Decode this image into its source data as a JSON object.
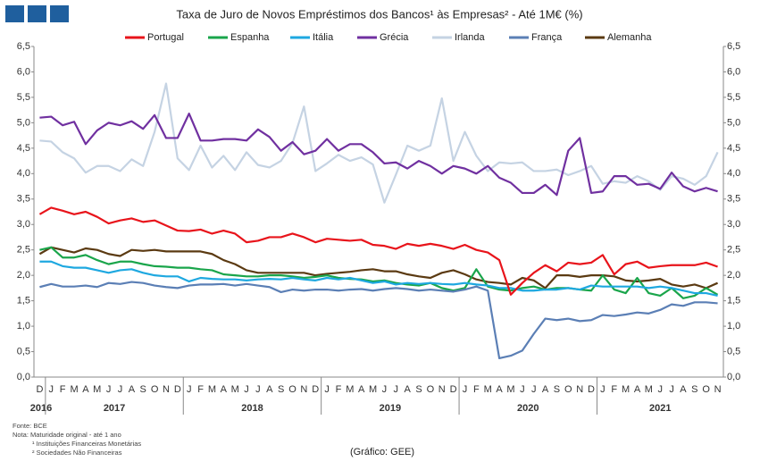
{
  "chart_data": {
    "type": "line",
    "title": "Taxa de Juro de Novos Empréstimos dos Bancos¹ às Empresas² - Até 1M€ (%)",
    "categories": [
      "D",
      "J",
      "F",
      "M",
      "A",
      "M",
      "J",
      "J",
      "A",
      "S",
      "O",
      "N",
      "D",
      "J",
      "F",
      "M",
      "A",
      "M",
      "J",
      "J",
      "A",
      "S",
      "O",
      "N",
      "D",
      "J",
      "F",
      "M",
      "A",
      "M",
      "J",
      "J",
      "A",
      "S",
      "O",
      "N",
      "D",
      "J",
      "F",
      "M",
      "A",
      "M",
      "J",
      "J",
      "A",
      "S",
      "O",
      "N",
      "D",
      "J",
      "F",
      "M",
      "A",
      "M",
      "J",
      "J",
      "A",
      "S",
      "O",
      "N"
    ],
    "years": [
      "2016",
      "2017",
      "2018",
      "2019",
      "2020",
      "2021"
    ],
    "series": [
      {
        "name": "Portugal",
        "color": "#e8141b",
        "values": [
          3.2,
          3.33,
          3.27,
          3.2,
          3.25,
          3.15,
          3.02,
          3.08,
          3.12,
          3.05,
          3.08,
          2.98,
          2.88,
          2.87,
          2.9,
          2.82,
          2.88,
          2.82,
          2.65,
          2.68,
          2.75,
          2.75,
          2.82,
          2.75,
          2.65,
          2.72,
          2.7,
          2.68,
          2.7,
          2.6,
          2.58,
          2.52,
          2.62,
          2.58,
          2.62,
          2.58,
          2.52,
          2.6,
          2.5,
          2.45,
          2.3,
          1.62,
          1.85,
          2.05,
          2.2,
          2.08,
          2.25,
          2.22,
          2.25,
          2.4,
          2.02,
          2.22,
          2.27,
          2.15,
          2.18,
          2.2,
          2.2,
          2.2,
          2.25,
          2.17
        ]
      },
      {
        "name": "Espanha",
        "color": "#1aa54b",
        "values": [
          2.5,
          2.55,
          2.35,
          2.35,
          2.4,
          2.3,
          2.22,
          2.27,
          2.27,
          2.22,
          2.18,
          2.17,
          2.15,
          2.15,
          2.12,
          2.1,
          2.02,
          2.0,
          1.98,
          1.98,
          2.0,
          2.0,
          1.98,
          1.95,
          1.97,
          2.0,
          1.95,
          1.93,
          1.92,
          1.88,
          1.9,
          1.85,
          1.82,
          1.8,
          1.85,
          1.75,
          1.7,
          1.75,
          2.12,
          1.78,
          1.72,
          1.7,
          1.75,
          1.78,
          1.72,
          1.75,
          1.75,
          1.72,
          1.7,
          2.0,
          1.72,
          1.65,
          1.95,
          1.65,
          1.6,
          1.75,
          1.55,
          1.6,
          1.75,
          1.62
        ]
      },
      {
        "name": "Itália",
        "color": "#1ea8e0",
        "values": [
          2.27,
          2.27,
          2.18,
          2.15,
          2.15,
          2.1,
          2.05,
          2.1,
          2.12,
          2.05,
          2.0,
          1.98,
          1.98,
          1.88,
          1.95,
          1.93,
          1.92,
          1.92,
          1.9,
          1.92,
          1.93,
          1.92,
          1.95,
          1.92,
          1.9,
          1.95,
          1.92,
          1.95,
          1.9,
          1.85,
          1.88,
          1.82,
          1.85,
          1.83,
          1.85,
          1.83,
          1.82,
          1.85,
          1.82,
          1.8,
          1.75,
          1.75,
          1.7,
          1.7,
          1.72,
          1.72,
          1.75,
          1.72,
          1.8,
          1.78,
          1.78,
          1.78,
          1.78,
          1.75,
          1.78,
          1.75,
          1.7,
          1.65,
          1.65,
          1.6
        ]
      },
      {
        "name": "Grécia",
        "color": "#7030a0",
        "values": [
          5.1,
          5.12,
          4.95,
          5.02,
          4.58,
          4.85,
          5.0,
          4.95,
          5.03,
          4.88,
          5.15,
          4.7,
          4.7,
          5.18,
          4.65,
          4.65,
          4.68,
          4.68,
          4.65,
          4.87,
          4.72,
          4.45,
          4.62,
          4.38,
          4.45,
          4.68,
          4.45,
          4.58,
          4.58,
          4.42,
          4.2,
          4.22,
          4.1,
          4.25,
          4.15,
          4.0,
          4.15,
          4.1,
          4.0,
          4.15,
          3.92,
          3.82,
          3.62,
          3.62,
          3.78,
          3.58,
          4.45,
          4.7,
          3.62,
          3.65,
          3.95,
          3.95,
          3.78,
          3.8,
          3.7,
          4.02,
          3.75,
          3.65,
          3.72,
          3.65
        ]
      },
      {
        "name": "Irlanda",
        "color": "#c5d3e3",
        "values": [
          4.65,
          4.63,
          4.42,
          4.3,
          4.02,
          4.15,
          4.15,
          4.05,
          4.28,
          4.15,
          4.82,
          5.77,
          4.3,
          4.07,
          4.55,
          4.12,
          4.35,
          4.07,
          4.42,
          4.17,
          4.12,
          4.25,
          4.6,
          5.32,
          4.05,
          4.2,
          4.37,
          4.25,
          4.32,
          4.18,
          3.43,
          3.98,
          4.55,
          4.45,
          4.55,
          5.48,
          4.25,
          4.82,
          4.35,
          4.05,
          4.22,
          4.2,
          4.22,
          4.05,
          4.05,
          4.08,
          3.97,
          4.05,
          4.15,
          3.8,
          3.85,
          3.82,
          3.95,
          3.85,
          3.68,
          3.95,
          3.9,
          3.78,
          3.95,
          4.42
        ]
      },
      {
        "name": "França",
        "color": "#5b7fb5",
        "values": [
          1.77,
          1.83,
          1.78,
          1.78,
          1.8,
          1.77,
          1.85,
          1.83,
          1.87,
          1.85,
          1.8,
          1.77,
          1.75,
          1.8,
          1.82,
          1.82,
          1.83,
          1.8,
          1.83,
          1.8,
          1.77,
          1.67,
          1.72,
          1.7,
          1.72,
          1.72,
          1.7,
          1.72,
          1.73,
          1.7,
          1.73,
          1.75,
          1.73,
          1.7,
          1.72,
          1.7,
          1.68,
          1.72,
          1.78,
          1.7,
          0.37,
          0.42,
          0.52,
          0.85,
          1.15,
          1.12,
          1.15,
          1.1,
          1.12,
          1.22,
          1.2,
          1.23,
          1.27,
          1.25,
          1.32,
          1.43,
          1.4,
          1.47,
          1.47,
          1.45
        ]
      },
      {
        "name": "Alemanha",
        "color": "#5b3a12",
        "values": [
          2.42,
          2.55,
          2.5,
          2.45,
          2.53,
          2.5,
          2.42,
          2.38,
          2.5,
          2.48,
          2.5,
          2.47,
          2.47,
          2.47,
          2.47,
          2.42,
          2.3,
          2.22,
          2.1,
          2.05,
          2.05,
          2.05,
          2.05,
          2.05,
          2.0,
          2.03,
          2.05,
          2.07,
          2.1,
          2.12,
          2.08,
          2.08,
          2.02,
          1.98,
          1.95,
          2.05,
          2.1,
          2.02,
          1.92,
          1.87,
          1.85,
          1.82,
          1.95,
          1.9,
          1.75,
          2.0,
          2.0,
          1.97,
          2.0,
          2.0,
          1.98,
          1.9,
          1.88,
          1.9,
          1.93,
          1.82,
          1.78,
          1.82,
          1.75,
          1.85
        ]
      }
    ],
    "ylim": [
      0,
      6.5
    ],
    "yticks": [
      {
        "value": 0,
        "label": "0,0"
      },
      {
        "value": 0.5,
        "label": "0,5"
      },
      {
        "value": 1,
        "label": "1,0"
      },
      {
        "value": 1.5,
        "label": "1,5"
      },
      {
        "value": 2,
        "label": "2,0"
      },
      {
        "value": 2.5,
        "label": "2,5"
      },
      {
        "value": 3,
        "label": "3,0"
      },
      {
        "value": 3.5,
        "label": "3,5"
      },
      {
        "value": 4,
        "label": "4,0"
      },
      {
        "value": 4.5,
        "label": "4,5"
      },
      {
        "value": 5,
        "label": "5,0"
      },
      {
        "value": 5.5,
        "label": "5,5"
      },
      {
        "value": 6,
        "label": "6,0"
      },
      {
        "value": 6.5,
        "label": "6,5"
      }
    ],
    "notes": [
      "Fonte: BCE",
      "Nota: Maturidade original - até 1 ano",
      "¹ Instituições Financeiras Monetárias",
      "² Sociedades Não Financeiras"
    ],
    "credit": "(Gráfico: GEE)"
  }
}
